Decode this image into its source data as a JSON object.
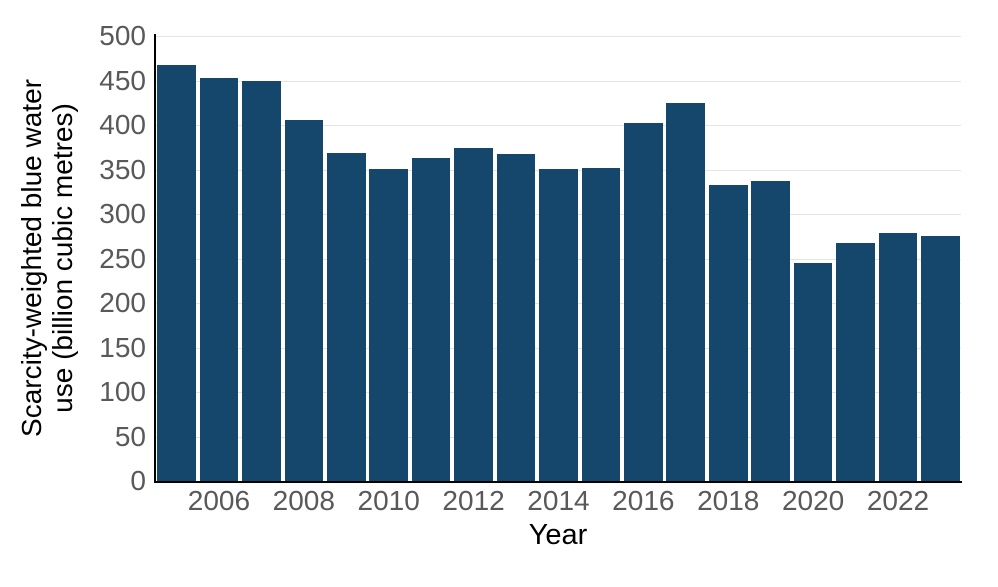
{
  "chart_data": {
    "type": "bar",
    "title": "",
    "xlabel": "Year",
    "ylabel": "Scarcity-weighted blue water use (billion cubic metres)",
    "ylabel_lines": [
      "Scarcity-weighted blue water",
      "use (billion cubic metres)"
    ],
    "categories": [
      2005,
      2006,
      2007,
      2008,
      2009,
      2010,
      2011,
      2012,
      2013,
      2014,
      2015,
      2016,
      2017,
      2018,
      2019,
      2020,
      2021,
      2022,
      2023
    ],
    "values": [
      467,
      453,
      450,
      406,
      369,
      351,
      363,
      374,
      367,
      351,
      352,
      402,
      425,
      333,
      337,
      245,
      267,
      279,
      275
    ],
    "ylim": [
      0,
      500
    ],
    "ytick_step": 50,
    "ytick_labels": [
      "0",
      "50",
      "100",
      "150",
      "200",
      "250",
      "300",
      "350",
      "400",
      "450",
      "500"
    ],
    "xtick_labels": [
      "2006",
      "2008",
      "2010",
      "2012",
      "2014",
      "2016",
      "2018",
      "2020",
      "2022"
    ],
    "grid": "horizontal",
    "legend": "none",
    "bar_color": "#15466b",
    "tick_label_color": "#595959",
    "axis_color": "#000000",
    "gridline_color": "#e5e5e5"
  }
}
